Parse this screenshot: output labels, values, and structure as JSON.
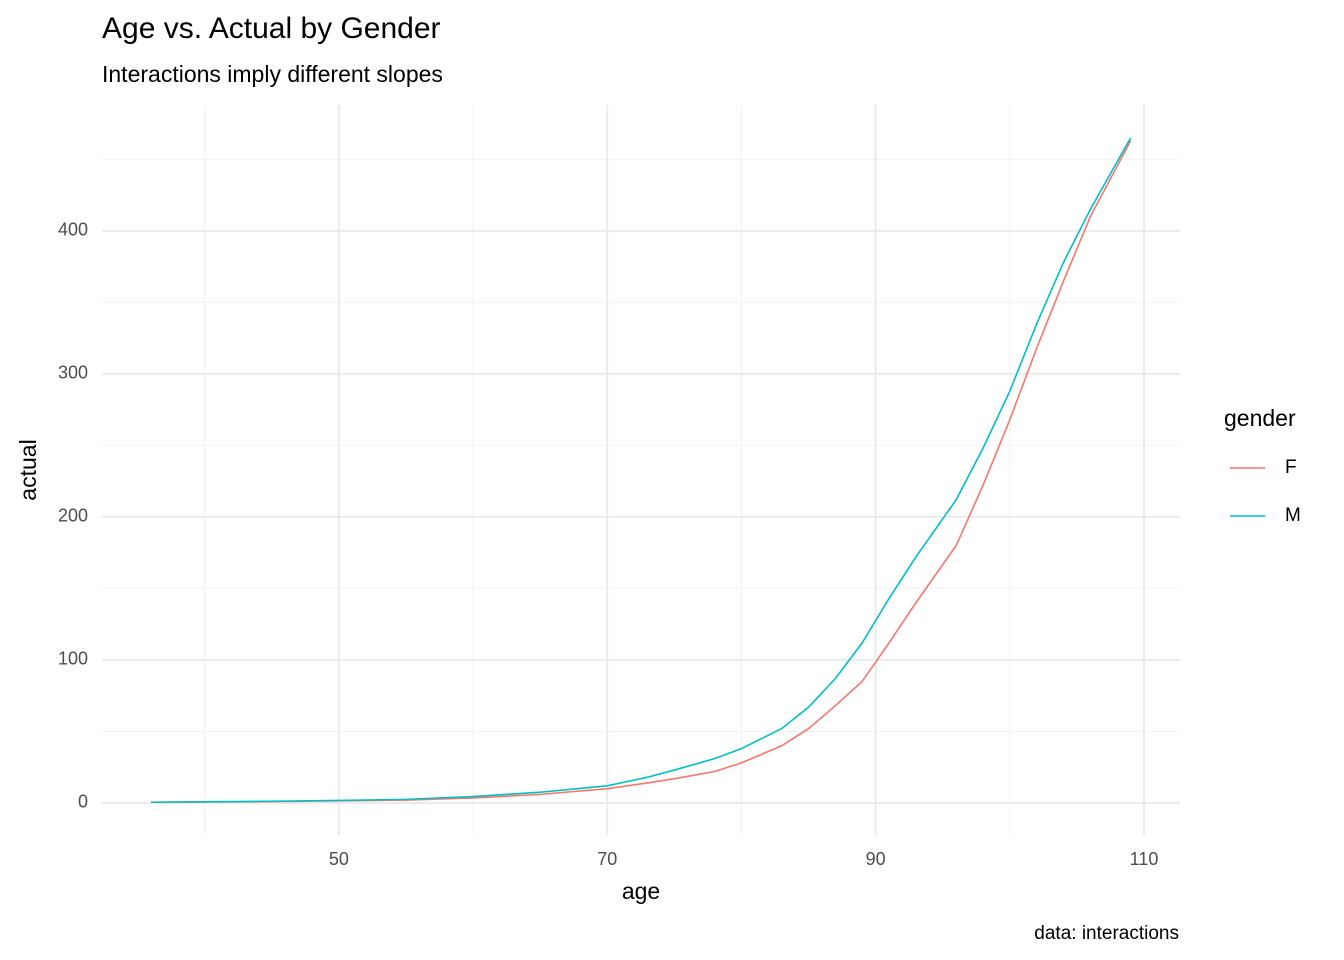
{
  "chart_data": {
    "type": "line",
    "title": "Age vs. Actual by Gender",
    "subtitle": "Interactions imply different slopes",
    "x_label": "age",
    "y_label": "actual",
    "caption": "data: interactions",
    "legend_title": "gender",
    "legend_position": "right",
    "grid": true,
    "x": [
      36,
      40,
      45,
      50,
      55,
      60,
      65,
      70,
      73,
      75,
      78,
      80,
      83,
      85,
      87,
      89,
      91,
      93,
      96,
      98,
      100,
      102,
      104,
      106,
      109
    ],
    "series": [
      {
        "name": "F",
        "color": "#F8766D",
        "values": [
          0.5,
          0.7,
          1,
          1.5,
          2,
          3.5,
          6,
          10,
          14,
          17,
          22,
          28,
          40,
          52,
          68,
          85,
          112,
          140,
          180,
          222,
          268,
          318,
          365,
          410,
          463
        ]
      },
      {
        "name": "M",
        "color": "#00BFC4",
        "values": [
          0.5,
          0.8,
          1.2,
          1.8,
          2.5,
          4.5,
          7.5,
          12,
          18,
          23,
          31,
          38,
          52,
          67,
          87,
          112,
          143,
          172,
          212,
          248,
          288,
          335,
          378,
          415,
          465
        ]
      }
    ],
    "xlim": [
      32.35,
      112.68
    ],
    "ylim": [
      -22.4,
      488
    ],
    "xticks": [
      50,
      70,
      90,
      110
    ],
    "yticks": [
      0,
      100,
      200,
      300,
      400
    ],
    "x_minor_grid": [
      40,
      60,
      80,
      100
    ],
    "y_minor_grid": [
      50,
      150,
      250,
      350,
      450
    ]
  }
}
